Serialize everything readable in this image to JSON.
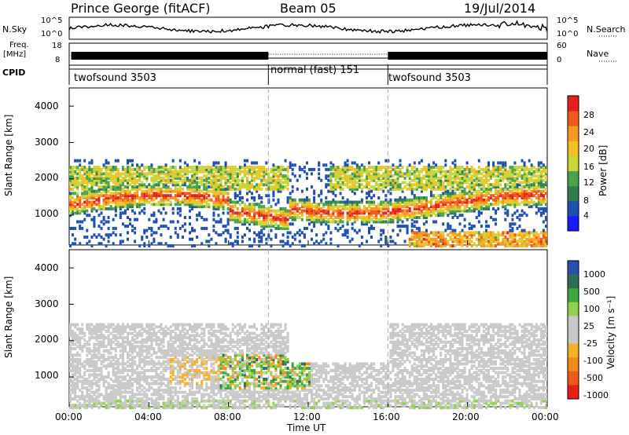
{
  "header": {
    "station": "Prince George (fitACF)",
    "beam": "Beam 05",
    "date": "19/Jul/2014"
  },
  "side_labels": {
    "nsky": "N.Sky",
    "freq_a": "Freq.",
    "freq_b": "[MHz]",
    "cpid": "CPID",
    "nsearch": "N.Search",
    "nave": "Nave"
  },
  "top_axes": {
    "noise_left": [
      "10^5",
      "10^0"
    ],
    "noise_right": [
      "10^5",
      "10^0"
    ],
    "freq_left": [
      "18",
      "8"
    ],
    "nave_right": [
      "60",
      "0"
    ]
  },
  "cpid_segments": [
    {
      "label": "twofsound 3503",
      "start_h": 0,
      "end_h": 10
    },
    {
      "label": "normal (fast) 151",
      "start_h": 10,
      "end_h": 16
    },
    {
      "label": "twofsound 3503",
      "start_h": 16,
      "end_h": 24
    }
  ],
  "colors": {
    "power": [
      "#1a1aff",
      "#1f4fb0",
      "#2e7d4f",
      "#4aa34a",
      "#c8d63a",
      "#f2c222",
      "#f59a1f",
      "#f25a1a",
      "#e8201c"
    ],
    "velocity": [
      "#e8201c",
      "#ee5a1c",
      "#f28a1c",
      "#f5b024",
      "#c8c8c8",
      "#c8c8c8",
      "#8fd14a",
      "#3aa83a",
      "#2e6f5a",
      "#2a4fb0"
    ],
    "gray": "#c8c8c8"
  },
  "chart_data": [
    {
      "type": "heatmap",
      "name": "Power",
      "ylabel": "Slant Range [km]",
      "yticks": [
        "1000",
        "2000",
        "3000",
        "4000"
      ],
      "colorbar_label": "Power [dB]",
      "colorbar_ticks": [
        "4",
        "8",
        "12",
        "16",
        "20",
        "24",
        "28"
      ],
      "ylim": [
        180,
        4500
      ],
      "xlim": [
        0,
        24
      ]
    },
    {
      "type": "heatmap",
      "name": "Velocity",
      "ylabel": "Slant Range [km]",
      "yticks": [
        "1000",
        "2000",
        "3000",
        "4000"
      ],
      "colorbar_label": "Velocity [m s⁻¹]",
      "colorbar_ticks": [
        "1000",
        "500",
        "100",
        "25",
        "-25",
        "-100",
        "-500",
        "-1000"
      ],
      "ylim": [
        180,
        4500
      ],
      "xlim": [
        0,
        24
      ]
    }
  ],
  "x_axis": {
    "ticks": [
      "00:00",
      "04:00",
      "08:00",
      "12:00",
      "16:00",
      "20:00",
      "00:00"
    ],
    "label": "Time UT"
  }
}
